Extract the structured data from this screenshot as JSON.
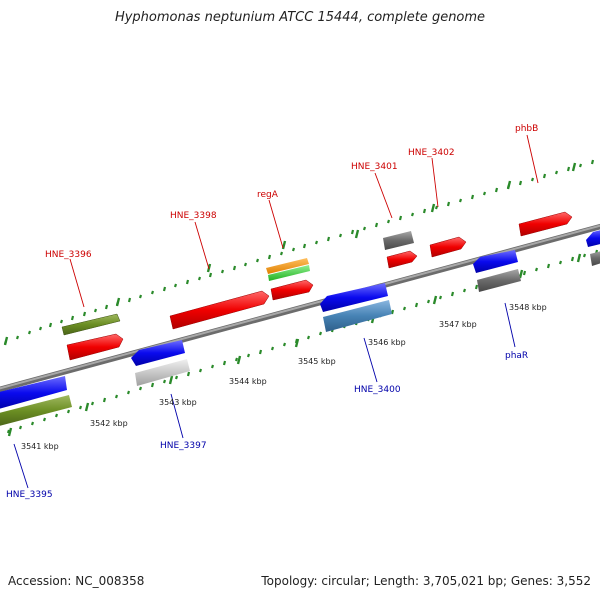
{
  "title": "Hyphomonas neptunium ATCC 15444, complete genome",
  "footer": {
    "accession": "Accession: NC_008358",
    "summary": "Topology: circular; Length: 3,705,021 bp; Genes: 3,552"
  },
  "colors": {
    "backbone": "#8a8a8a",
    "tick": "#2a8a2a",
    "label_upper": "#cc0000",
    "label_lower": "#0000aa"
  },
  "kbp_labels": [
    "3541 kbp",
    "3542 kbp",
    "3543 kbp",
    "3544 kbp",
    "3545 kbp",
    "3546 kbp",
    "3547 kbp",
    "3548 kbp"
  ],
  "gene_labels_upper": [
    "HNE_3396",
    "HNE_3398",
    "regA",
    "HNE_3401",
    "HNE_3402",
    "phbB"
  ],
  "gene_labels_lower": [
    "HNE_3395",
    "HNE_3397",
    "HNE_3400",
    "phaR"
  ],
  "features": [
    {
      "color": "olive",
      "strand": "+"
    },
    {
      "color": "red",
      "strand": "+"
    },
    {
      "color": "red",
      "strand": "+"
    },
    {
      "color": "orange",
      "strand": "+"
    },
    {
      "color": "green",
      "strand": "+"
    },
    {
      "color": "red",
      "strand": "+"
    },
    {
      "color": "gray",
      "strand": "+"
    },
    {
      "color": "red",
      "strand": "+"
    },
    {
      "color": "red",
      "strand": "+"
    },
    {
      "color": "red",
      "strand": "+"
    },
    {
      "color": "blue",
      "strand": "-"
    },
    {
      "color": "olive",
      "strand": "-"
    },
    {
      "color": "blue",
      "strand": "-"
    },
    {
      "color": "lightgray",
      "strand": "-"
    },
    {
      "color": "blue",
      "strand": "-"
    },
    {
      "color": "steelblue",
      "strand": "-"
    },
    {
      "color": "blue",
      "strand": "-"
    },
    {
      "color": "gray",
      "strand": "-"
    }
  ]
}
